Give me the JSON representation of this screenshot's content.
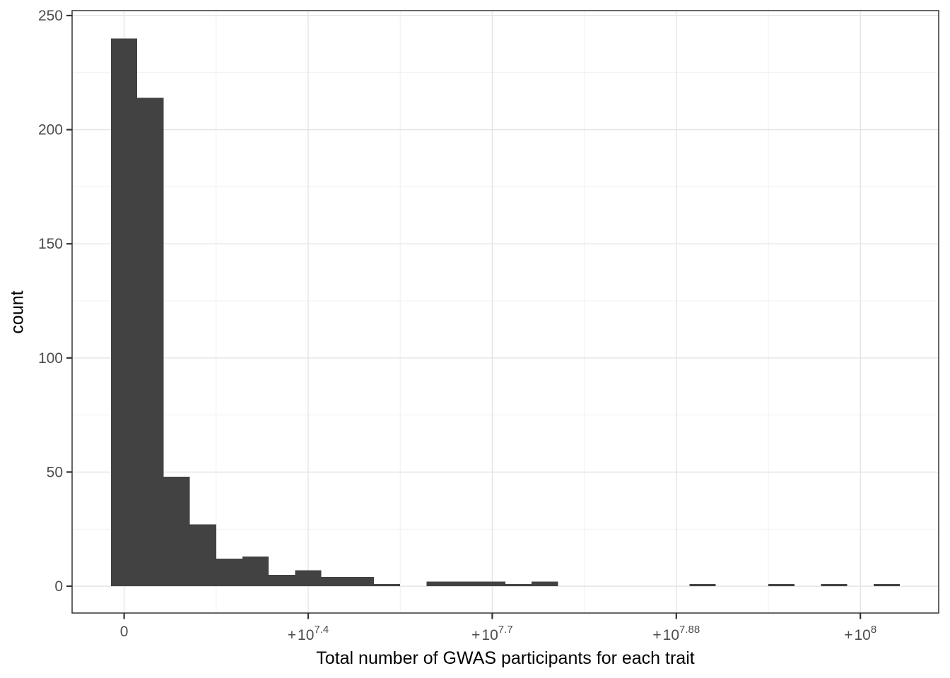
{
  "figure": {
    "background": "#ffffff"
  },
  "chart_data": {
    "type": "bar",
    "subtype": "histogram",
    "title": "",
    "xlabel": "Total number of GWAS participants for each trait",
    "ylabel": "count",
    "legend": "none",
    "grid": "on",
    "panel_background": "#ffffff",
    "bar_color": "#424242",
    "panel_border_color": "#333333",
    "grid_major_color": "#e4e4e4",
    "grid_minor_color": "#f0f0f0",
    "tick_color": "#333333",
    "axis_text_color": "#4d4d4d",
    "axis_title_color": "#000000",
    "ylim": [
      0,
      250
    ],
    "y_ticks": [
      0,
      50,
      100,
      150,
      200,
      250
    ],
    "y_minor_ticks": [
      25,
      75,
      125,
      175,
      225
    ],
    "x_ticks": [
      {
        "pos": 0.5,
        "label": {
          "prefix": "",
          "base": "0",
          "sup": ""
        }
      },
      {
        "pos": 7.5,
        "label": {
          "prefix": "+",
          "base": "10",
          "sup": "7.4"
        }
      },
      {
        "pos": 14.5,
        "label": {
          "prefix": "+",
          "base": "10",
          "sup": "7.7"
        }
      },
      {
        "pos": 21.5,
        "label": {
          "prefix": "+",
          "base": "10",
          "sup": "7.88"
        }
      },
      {
        "pos": 28.5,
        "label": {
          "prefix": "+",
          "base": "10",
          "sup": "8"
        }
      }
    ],
    "x_minor_ticks": [
      4,
      11,
      18,
      25
    ],
    "n_bins": 30,
    "bin_counts": [
      240,
      214,
      48,
      27,
      12,
      13,
      5,
      7,
      4,
      4,
      1,
      0,
      2,
      2,
      2,
      1,
      2,
      0,
      0,
      0,
      0,
      0,
      1,
      0,
      0,
      1,
      0,
      1,
      0,
      1
    ]
  }
}
